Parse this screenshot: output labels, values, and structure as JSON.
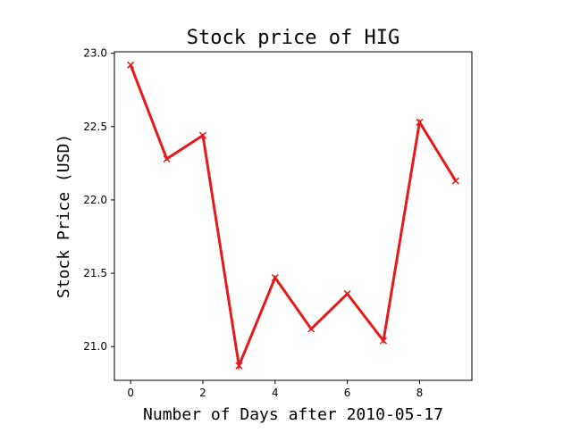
{
  "chart_data": {
    "type": "line",
    "title": "Stock price of HIG",
    "xlabel": "Number of Days after 2010-05-17",
    "ylabel": "Stock Price (USD)",
    "x": [
      0,
      1,
      2,
      3,
      4,
      5,
      6,
      7,
      8,
      9
    ],
    "series": [
      {
        "values": [
          22.92,
          22.28,
          22.44,
          20.87,
          21.47,
          21.12,
          21.36,
          21.04,
          22.53,
          22.13
        ],
        "color": "#e41a1c",
        "marker": "x"
      }
    ],
    "xlim": [
      -0.45,
      9.45
    ],
    "ylim": [
      20.77,
      23.01
    ],
    "xticks": [
      0,
      2,
      4,
      6,
      8
    ],
    "yticks": [
      21.0,
      21.5,
      22.0,
      22.5,
      23.0
    ],
    "xtick_labels": [
      "0",
      "2",
      "4",
      "6",
      "8"
    ],
    "ytick_labels": [
      "21.0",
      "21.5",
      "22.0",
      "22.5",
      "23.0"
    ],
    "grid": false
  }
}
